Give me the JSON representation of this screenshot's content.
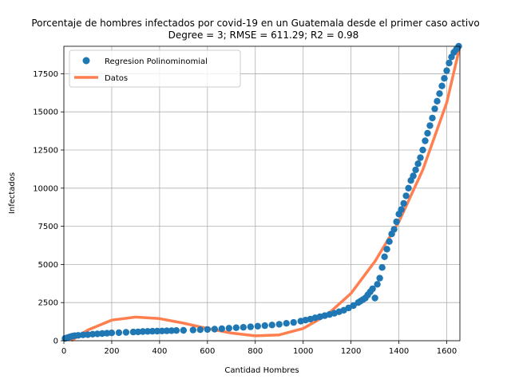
{
  "chart_data": {
    "type": "scatter",
    "title_line1": "Porcentaje de hombres infectados por covid-19 en un Guatemala desde el primer caso activo",
    "title_line2": "Degree = 3; RMSE = 611.29; R2 = 0.98",
    "xlabel": "Cantidad Hombres",
    "ylabel": "Infectados",
    "xlim": [
      0,
      1655
    ],
    "ylim": [
      0,
      19300
    ],
    "grid": true,
    "legend_position": "top-left",
    "xticks": [
      0,
      200,
      400,
      600,
      800,
      1000,
      1200,
      1400,
      1600
    ],
    "yticks": [
      0,
      2500,
      5000,
      7500,
      10000,
      12500,
      15000,
      17500
    ],
    "colors": {
      "scatter": "#1f77b4",
      "line": "#ff7f50"
    },
    "series": [
      {
        "name": "Regresion Polinominomial",
        "kind": "scatter",
        "x": [
          5,
          15,
          25,
          35,
          45,
          60,
          80,
          100,
          120,
          140,
          160,
          180,
          200,
          230,
          260,
          290,
          310,
          330,
          350,
          370,
          390,
          410,
          430,
          450,
          470,
          500,
          540,
          570,
          600,
          630,
          660,
          690,
          720,
          750,
          780,
          810,
          840,
          870,
          900,
          930,
          960,
          990,
          1010,
          1030,
          1050,
          1070,
          1090,
          1110,
          1130,
          1150,
          1170,
          1190,
          1210,
          1230,
          1240,
          1250,
          1260,
          1270,
          1280,
          1290,
          1300,
          1310,
          1320,
          1330,
          1340,
          1350,
          1360,
          1370,
          1380,
          1390,
          1400,
          1410,
          1420,
          1430,
          1440,
          1450,
          1460,
          1470,
          1480,
          1490,
          1500,
          1510,
          1520,
          1530,
          1540,
          1550,
          1560,
          1570,
          1580,
          1590,
          1600,
          1610,
          1620,
          1630,
          1640,
          1650
        ],
        "y": [
          150,
          200,
          250,
          300,
          330,
          350,
          380,
          400,
          430,
          450,
          470,
          490,
          510,
          530,
          550,
          570,
          580,
          600,
          610,
          620,
          630,
          640,
          650,
          660,
          670,
          680,
          700,
          720,
          740,
          760,
          790,
          820,
          850,
          880,
          910,
          950,
          990,
          1030,
          1080,
          1140,
          1200,
          1280,
          1350,
          1420,
          1500,
          1570,
          1640,
          1720,
          1800,
          1900,
          2000,
          2150,
          2300,
          2500,
          2600,
          2700,
          2800,
          3000,
          3200,
          3400,
          2800,
          3700,
          4100,
          4800,
          5500,
          6000,
          6500,
          7000,
          7300,
          7800,
          8300,
          8600,
          9000,
          9500,
          10000,
          10500,
          10800,
          11200,
          11600,
          12000,
          12500,
          13100,
          13600,
          14100,
          14600,
          15200,
          15700,
          16200,
          16700,
          17200,
          17700,
          18200,
          18600,
          18900,
          19100,
          19300
        ]
      },
      {
        "name": "Datos",
        "kind": "line",
        "x": [
          30,
          100,
          200,
          300,
          400,
          500,
          600,
          700,
          800,
          900,
          1000,
          1100,
          1200,
          1300,
          1400,
          1500,
          1600,
          1655
        ],
        "y": [
          0,
          700,
          1350,
          1550,
          1450,
          1150,
          800,
          500,
          320,
          380,
          800,
          1700,
          3100,
          5200,
          7800,
          11200,
          15600,
          19300
        ]
      }
    ]
  }
}
